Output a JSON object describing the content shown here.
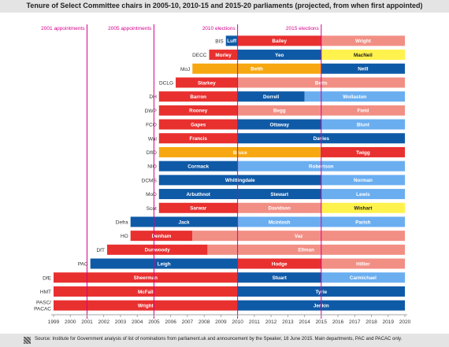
{
  "title": "Tenure of Select Committee chairs in 2005-10, 2010-15 and 2015-20 parliaments (projected, from when first appointed)",
  "source": "Source: Institute for Government analysis of list of nominations from parliament.uk and announcement by the Speaker, 18 June 2015. Main departments, PAC and PACAC only.",
  "chart_data": {
    "type": "bar",
    "orientation": "horizontal-timeline",
    "xlim": [
      1999,
      2020
    ],
    "x_ticks": [
      "1999",
      "2000",
      "2001",
      "2002",
      "2003",
      "2004",
      "2005",
      "2006",
      "2007",
      "2008",
      "2009",
      "2010",
      "2011",
      "2012",
      "2013",
      "2014",
      "2015",
      "2016",
      "2017",
      "2018",
      "2019",
      "2020"
    ],
    "annotations": [
      {
        "label": "2001 appointments",
        "x": 2001
      },
      {
        "label": "2005 appointments",
        "x": 2005
      },
      {
        "label": "2010 elections",
        "x": 2010
      },
      {
        "label": "2015 elections",
        "x": 2015
      }
    ],
    "colors": {
      "labour": "#e8302f",
      "labour_projected": "#f28f85",
      "conservative": "#0f5aa7",
      "conservative_projected": "#6aaef0",
      "libdem": "#f7a711",
      "libdem_projected": "#f9c65e",
      "snp": "#fff24c",
      "snp_projected": "#fff27a",
      "divider": "#d6008c"
    },
    "committees": [
      {
        "label": "BIS",
        "segments": [
          {
            "name": "Luff",
            "start": 2009.3,
            "end": 2010,
            "party": "conservative"
          },
          {
            "name": "Bailey",
            "start": 2010,
            "end": 2015,
            "party": "labour"
          },
          {
            "name": "Wright",
            "start": 2015,
            "end": 2020,
            "party": "labour_projected"
          }
        ]
      },
      {
        "label": "DECC",
        "segments": [
          {
            "name": "Morley",
            "start": 2008.3,
            "end": 2010,
            "party": "labour"
          },
          {
            "name": "Yeo",
            "start": 2010,
            "end": 2015,
            "party": "conservative"
          },
          {
            "name": "MacNeil",
            "start": 2015,
            "end": 2020,
            "party": "snp"
          }
        ]
      },
      {
        "label": "MoJ",
        "segments": [
          {
            "name": "Beith",
            "start": 2007.3,
            "end": 2015,
            "party": "libdem"
          },
          {
            "name": "Neill",
            "start": 2015,
            "end": 2020,
            "party": "conservative"
          }
        ]
      },
      {
        "label": "DCLG",
        "segments": [
          {
            "name": "Starkey",
            "start": 2006.3,
            "end": 2010,
            "party": "labour"
          },
          {
            "name": "Betts",
            "start": 2010,
            "end": 2020,
            "party": "labour_projected"
          }
        ]
      },
      {
        "label": "DH",
        "segments": [
          {
            "name": "Barron",
            "start": 2005.3,
            "end": 2010,
            "party": "labour"
          },
          {
            "name": "Dorrell",
            "start": 2010,
            "end": 2014,
            "party": "conservative"
          },
          {
            "name": "Wollaston",
            "start": 2014,
            "end": 2020,
            "party": "conservative_projected"
          }
        ]
      },
      {
        "label": "DWP",
        "segments": [
          {
            "name": "Rooney",
            "start": 2005.3,
            "end": 2010,
            "party": "labour"
          },
          {
            "name": "Begg",
            "start": 2010,
            "end": 2015,
            "party": "labour_projected"
          },
          {
            "name": "Field",
            "start": 2015,
            "end": 2020,
            "party": "labour_projected"
          }
        ]
      },
      {
        "label": "FCO",
        "segments": [
          {
            "name": "Gapes",
            "start": 2005.3,
            "end": 2010,
            "party": "labour"
          },
          {
            "name": "Ottaway",
            "start": 2010,
            "end": 2015,
            "party": "conservative"
          },
          {
            "name": "Blunt",
            "start": 2015,
            "end": 2020,
            "party": "conservative_projected"
          }
        ]
      },
      {
        "label": "Wal",
        "segments": [
          {
            "name": "Francis",
            "start": 2005.3,
            "end": 2010,
            "party": "labour"
          },
          {
            "name": "Davies",
            "start": 2010,
            "end": 2020,
            "party": "conservative"
          }
        ]
      },
      {
        "label": "DfID",
        "segments": [
          {
            "name": "Bruce",
            "start": 2005.3,
            "end": 2015,
            "party": "libdem"
          },
          {
            "name": "Twigg",
            "start": 2015,
            "end": 2020,
            "party": "labour"
          }
        ]
      },
      {
        "label": "NIO",
        "segments": [
          {
            "name": "Cormack",
            "start": 2005.3,
            "end": 2010,
            "party": "conservative"
          },
          {
            "name": "Robertson",
            "start": 2010,
            "end": 2020,
            "party": "conservative_projected"
          }
        ]
      },
      {
        "label": "DCMS",
        "segments": [
          {
            "name": "Whittingdale",
            "start": 2005.3,
            "end": 2015,
            "party": "conservative"
          },
          {
            "name": "Norman",
            "start": 2015,
            "end": 2020,
            "party": "conservative_projected"
          }
        ]
      },
      {
        "label": "MoD",
        "segments": [
          {
            "name": "Arbuthnot",
            "start": 2005.3,
            "end": 2010,
            "party": "conservative"
          },
          {
            "name": "Stewart",
            "start": 2010,
            "end": 2015,
            "party": "conservative"
          },
          {
            "name": "Lewis",
            "start": 2015,
            "end": 2020,
            "party": "conservative_projected"
          }
        ]
      },
      {
        "label": "Scot",
        "segments": [
          {
            "name": "Sarwar",
            "start": 2005.3,
            "end": 2010,
            "party": "labour"
          },
          {
            "name": "Davidson",
            "start": 2010,
            "end": 2015,
            "party": "labour_projected"
          },
          {
            "name": "Wishart",
            "start": 2015,
            "end": 2020,
            "party": "snp"
          }
        ]
      },
      {
        "label": "Defra",
        "segments": [
          {
            "name": "Jack",
            "start": 2003.6,
            "end": 2010,
            "party": "conservative"
          },
          {
            "name": "Mcintosh",
            "start": 2010,
            "end": 2015,
            "party": "conservative_projected"
          },
          {
            "name": "Parish",
            "start": 2015,
            "end": 2020,
            "party": "conservative_projected"
          }
        ]
      },
      {
        "label": "HO",
        "segments": [
          {
            "name": "Denham",
            "start": 2003.6,
            "end": 2007.3,
            "party": "labour"
          },
          {
            "name": "Vaz",
            "start": 2007.3,
            "end": 2020,
            "party": "labour_projected"
          }
        ]
      },
      {
        "label": "DfT",
        "segments": [
          {
            "name": "Dunwoody",
            "start": 2002.2,
            "end": 2008.2,
            "party": "labour"
          },
          {
            "name": "Ellman",
            "start": 2008.2,
            "end": 2020,
            "party": "labour_projected"
          }
        ]
      },
      {
        "label": "PAC",
        "segments": [
          {
            "name": "Leigh",
            "start": 2001.2,
            "end": 2010,
            "party": "conservative"
          },
          {
            "name": "Hodge",
            "start": 2010,
            "end": 2015,
            "party": "labour"
          },
          {
            "name": "Hillier",
            "start": 2015,
            "end": 2020,
            "party": "labour_projected"
          }
        ]
      },
      {
        "label": "DfE",
        "segments": [
          {
            "name": "Sheerman",
            "start": 1999,
            "end": 2010,
            "party": "labour"
          },
          {
            "name": "Stuart",
            "start": 2010,
            "end": 2015,
            "party": "conservative"
          },
          {
            "name": "Carmichael",
            "start": 2015,
            "end": 2020,
            "party": "conservative_projected"
          }
        ]
      },
      {
        "label": "HMT",
        "segments": [
          {
            "name": "McFall",
            "start": 1999,
            "end": 2010,
            "party": "labour"
          },
          {
            "name": "Tyrie",
            "start": 2010,
            "end": 2020,
            "party": "conservative"
          }
        ]
      },
      {
        "label": "PASC/\nPACAC",
        "segments": [
          {
            "name": "Wright",
            "start": 1999,
            "end": 2010,
            "party": "labour"
          },
          {
            "name": "Jenkin",
            "start": 2010,
            "end": 2020,
            "party": "conservative"
          }
        ]
      }
    ]
  }
}
